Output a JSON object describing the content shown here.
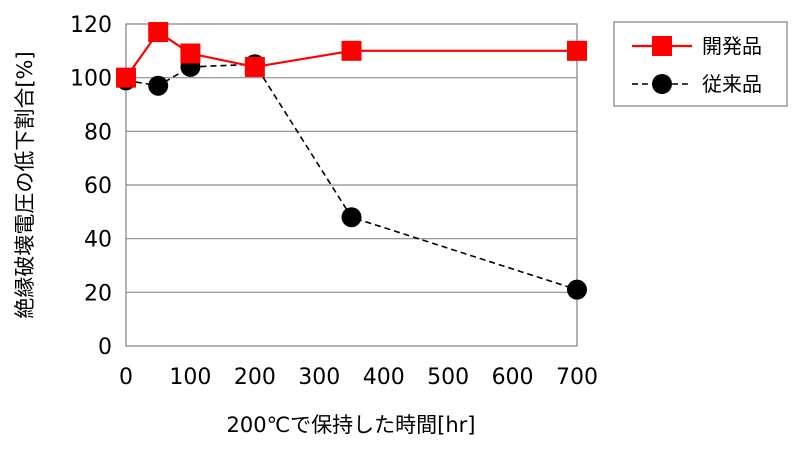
{
  "chart_data": {
    "type": "line",
    "xlabel": "200℃で保持した時間[hr]",
    "ylabel": "絶縁破壊電圧の低下割合[%]",
    "xlim": [
      0,
      700
    ],
    "ylim": [
      0,
      120
    ],
    "x_ticks": [
      0,
      100,
      200,
      300,
      400,
      500,
      600,
      700
    ],
    "y_ticks": [
      0,
      20,
      40,
      60,
      80,
      100,
      120
    ],
    "grid": "horizontal",
    "legend_position": "top-right-outside",
    "series": [
      {
        "name": "開発品",
        "color": "#ff0000",
        "marker": "square",
        "line_style": "solid",
        "x": [
          0,
          50,
          100,
          200,
          350,
          700
        ],
        "y": [
          100,
          117,
          109,
          104,
          110,
          110
        ]
      },
      {
        "name": "従来品",
        "color": "#000000",
        "marker": "circle",
        "line_style": "dashed",
        "x": [
          0,
          50,
          100,
          200,
          350,
          700
        ],
        "y": [
          99,
          97,
          104,
          105,
          48,
          21
        ]
      }
    ]
  }
}
